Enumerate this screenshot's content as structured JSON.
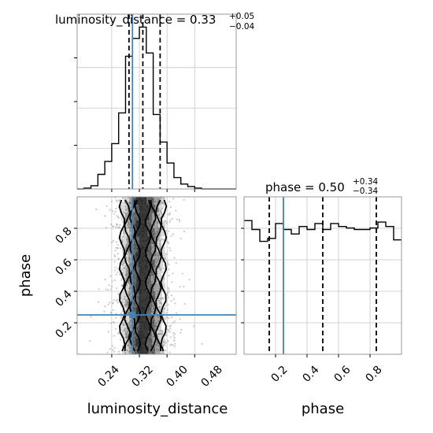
{
  "chart_data": {
    "type": "corner",
    "panels": [
      {
        "name": "luminosity_distance-marginal",
        "type": "histogram",
        "title": {
          "prefix": "luminosity_distance = 0.33",
          "sup": "+0.05",
          "sub": "−0.04"
        },
        "bin_edges": [
          0.14,
          0.16,
          0.18,
          0.2,
          0.22,
          0.24,
          0.26,
          0.28,
          0.3,
          0.32,
          0.34,
          0.36,
          0.38,
          0.4,
          0.42,
          0.44,
          0.46,
          0.48,
          0.5,
          0.52,
          0.54,
          0.56,
          0.58,
          0.6
        ],
        "counts": [
          0,
          0.005,
          0.02,
          0.09,
          0.17,
          0.28,
          0.47,
          0.82,
          0.93,
          1.0,
          0.84,
          0.46,
          0.29,
          0.16,
          0.07,
          0.03,
          0.015,
          0.005,
          0,
          0,
          0,
          0,
          0
        ],
        "quantiles": [
          0.29,
          0.33,
          0.38
        ],
        "truth": 0.3,
        "xlim": [
          0.14,
          0.6
        ],
        "xticks": [
          0.24,
          0.32,
          0.4,
          0.48
        ]
      },
      {
        "name": "phase-marginal",
        "type": "histogram",
        "title": {
          "prefix": "phase = 0.50",
          "sup": "+0.34",
          "sub": "−0.34"
        },
        "bin_edges": [
          0.0,
          0.05,
          0.1,
          0.15,
          0.2,
          0.25,
          0.3,
          0.35,
          0.4,
          0.45,
          0.5,
          0.55,
          0.6,
          0.65,
          0.7,
          0.75,
          0.8,
          0.85,
          0.9,
          0.95,
          1.0
        ],
        "counts": [
          0.9,
          0.84,
          0.76,
          0.78,
          0.88,
          0.84,
          0.81,
          0.86,
          0.84,
          0.88,
          0.84,
          0.88,
          0.86,
          0.85,
          0.84,
          0.84,
          0.85,
          0.89,
          0.86,
          0.77
        ],
        "quantiles": [
          0.16,
          0.5,
          0.84
        ],
        "truth": 0.25,
        "xlim": [
          0,
          1
        ],
        "xticks": [
          0.2,
          0.4,
          0.6,
          0.8
        ]
      },
      {
        "name": "2d-density",
        "type": "scatter-contour",
        "x_param": "luminosity_distance",
        "y_param": "phase",
        "xlim": [
          0.14,
          0.6
        ],
        "ylim": [
          0,
          1
        ],
        "xticks": [
          0.24,
          0.32,
          0.4,
          0.48
        ],
        "yticks": [
          0.2,
          0.4,
          0.6,
          0.8
        ],
        "x_center": 0.33,
        "x_sigma": 0.045,
        "contour_halfwidths": [
          0.015,
          0.03,
          0.045,
          0.06
        ],
        "truth": {
          "x": 0.3,
          "y": 0.25
        }
      }
    ],
    "xlabels": {
      "left": "luminosity_distance",
      "right": "phase"
    },
    "ylabel": "phase",
    "colors": {
      "hist": "#000000",
      "truth": "#4682b4",
      "scatter": "#b4b4b4",
      "quantile": "#000000"
    }
  },
  "tick_labels": {
    "ld_x": [
      "0.24",
      "0.32",
      "0.40",
      "0.48"
    ],
    "phase_x": [
      "0.2",
      "0.4",
      "0.6",
      "0.8"
    ],
    "phase_y": [
      "0.2",
      "0.4",
      "0.6",
      "0.8"
    ]
  }
}
